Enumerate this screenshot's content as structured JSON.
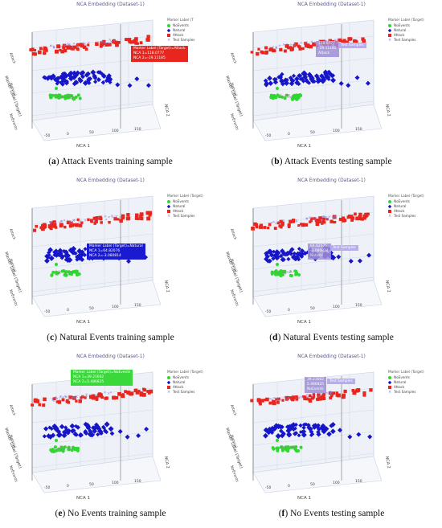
{
  "panels": [
    {
      "key": "a",
      "letter": "a",
      "caption": "Attack Events training sample",
      "title": "NCA Embedding (Dataset-1)",
      "legend_title": "Marker Label (T",
      "tooltip": {
        "lines": [
          "Marker Label (Target)=Attack",
          "NCA 1=118.0777",
          "NCA 2=-19.11185"
        ],
        "color": "#e8261e",
        "faint": false
      }
    },
    {
      "key": "b",
      "letter": "b",
      "caption": "Attack Events testing sample",
      "title": "NCA Embedding (Dataset-1)",
      "legend_title": "Marker Label (Target)",
      "tooltip": {
        "lines": [
          "118.0777",
          "-19.11185",
          "Attack"
        ],
        "color": "#9f8fd8",
        "faint": true
      },
      "ts_label": "Test Samples"
    },
    {
      "key": "c",
      "letter": "c",
      "caption": "Natural Events training sample",
      "title": "NCA Embedding (Dataset-1)",
      "legend_title": "Marker Label (Target)",
      "tooltip": {
        "lines": [
          "Marker Label (Target)=Natural",
          "NCA 1=64.82076",
          "NCA 2=-3.080814"
        ],
        "color": "#1a1ad0",
        "faint": false
      }
    },
    {
      "key": "d",
      "letter": "d",
      "caption": "Natural Events testing sample",
      "title": "NCA Embedding (Dataset-1)",
      "legend_title": "Marker Label (Target)",
      "tooltip": {
        "lines": [
          "64.82076",
          "-3.080814",
          "Natural"
        ],
        "color": "#9f8fd8",
        "faint": true
      },
      "ts_label": "Test Samples"
    },
    {
      "key": "e",
      "letter": "e",
      "caption": "No Events training sample",
      "title": "NCA Embedding (Dataset-1)",
      "legend_title": "Marker Label (Target)",
      "tooltip": {
        "lines": [
          "Marker Label (Target)=NoEvents",
          "NCA 1=39.21602",
          "NCA 2=5.486825"
        ],
        "color": "#3ad83a",
        "faint": false
      }
    },
    {
      "key": "f",
      "letter": "f",
      "caption": "No Events testing sample",
      "title": "NCA Embedding (Dataset-1)",
      "legend_title": "Marker Label (Target)",
      "tooltip": {
        "lines": [
          "39.21602",
          "5.486825",
          "NoEvents"
        ],
        "color": "#9f8fd8",
        "faint": true
      },
      "ts_label": "Test Samples"
    }
  ],
  "legend_items": [
    {
      "label": "NoEvents",
      "shape": "circle",
      "color": "#2fd82f"
    },
    {
      "label": "Natural",
      "shape": "diamond",
      "color": "#1616c8"
    },
    {
      "label": "Attack",
      "shape": "square",
      "color": "#e8261e"
    },
    {
      "label": "Test Samples",
      "shape": "cross",
      "color": "#8a7ad8"
    }
  ],
  "axes": {
    "x": "NCA 1",
    "y": "Marker Label (Target)",
    "z": "NCA 2",
    "ticks_x": [
      "-50",
      "0",
      "50",
      "100",
      "150"
    ],
    "ticks_y": [
      "NoEvents",
      "Natural",
      "Attack"
    ]
  },
  "colors": {
    "attack": "#e8261e",
    "natural": "#1616c8",
    "noevents": "#2fd82f",
    "test": "#8a7ad8",
    "grid": "#c9d3e3",
    "pane": "#eef1f7"
  }
}
